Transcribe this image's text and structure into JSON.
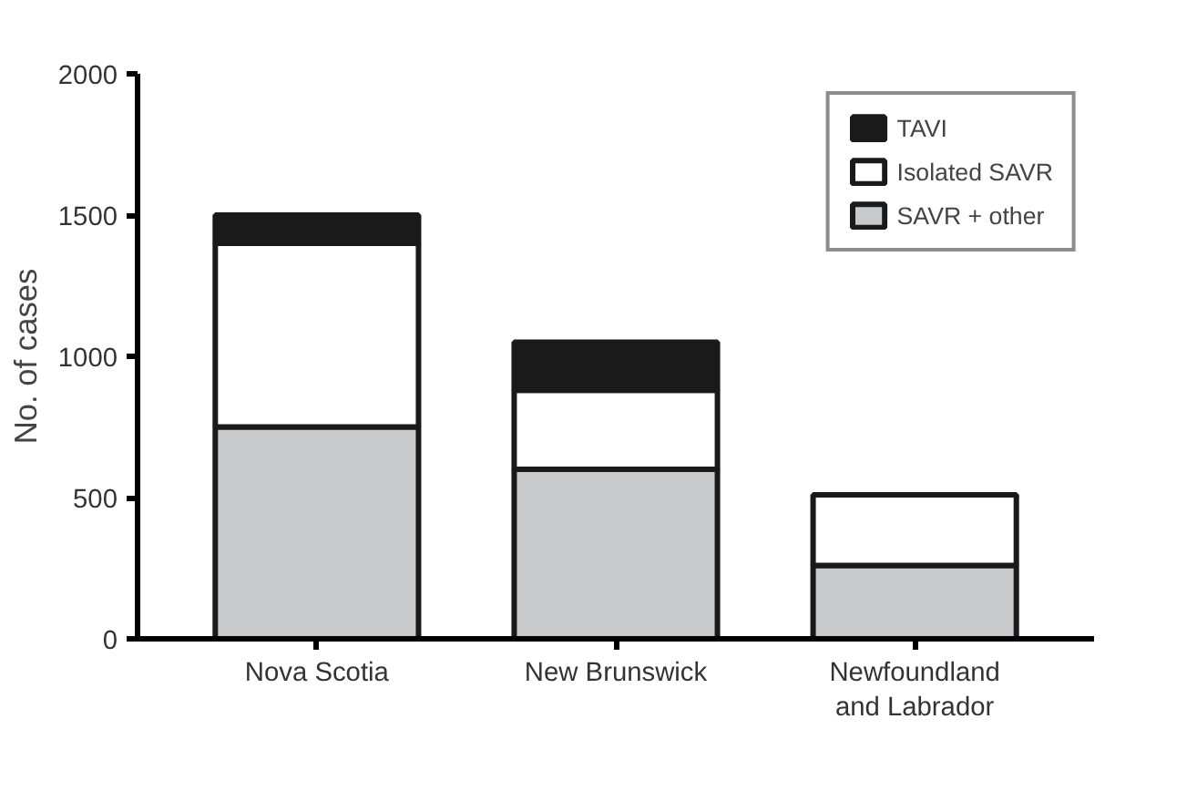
{
  "chart_data": {
    "type": "bar",
    "stacked": true,
    "ylabel": "No. of cases",
    "categories": [
      "Nova Scotia",
      "New Brunswick",
      "Newfoundland\nand Labrador"
    ],
    "series": [
      {
        "name": "SAVR + other",
        "color": "#c8c9cb",
        "values": [
          750,
          600,
          260
        ]
      },
      {
        "name": "Isolated SAVR",
        "color": "#ffffff",
        "values": [
          650,
          280,
          250
        ]
      },
      {
        "name": "TAVI",
        "color": "#1a1a1a",
        "values": [
          100,
          170,
          null
        ]
      }
    ],
    "ylim": [
      0,
      2000
    ],
    "yticks": [
      0,
      500,
      1000,
      1500,
      2000
    ],
    "grid": false,
    "legend": "top right"
  }
}
